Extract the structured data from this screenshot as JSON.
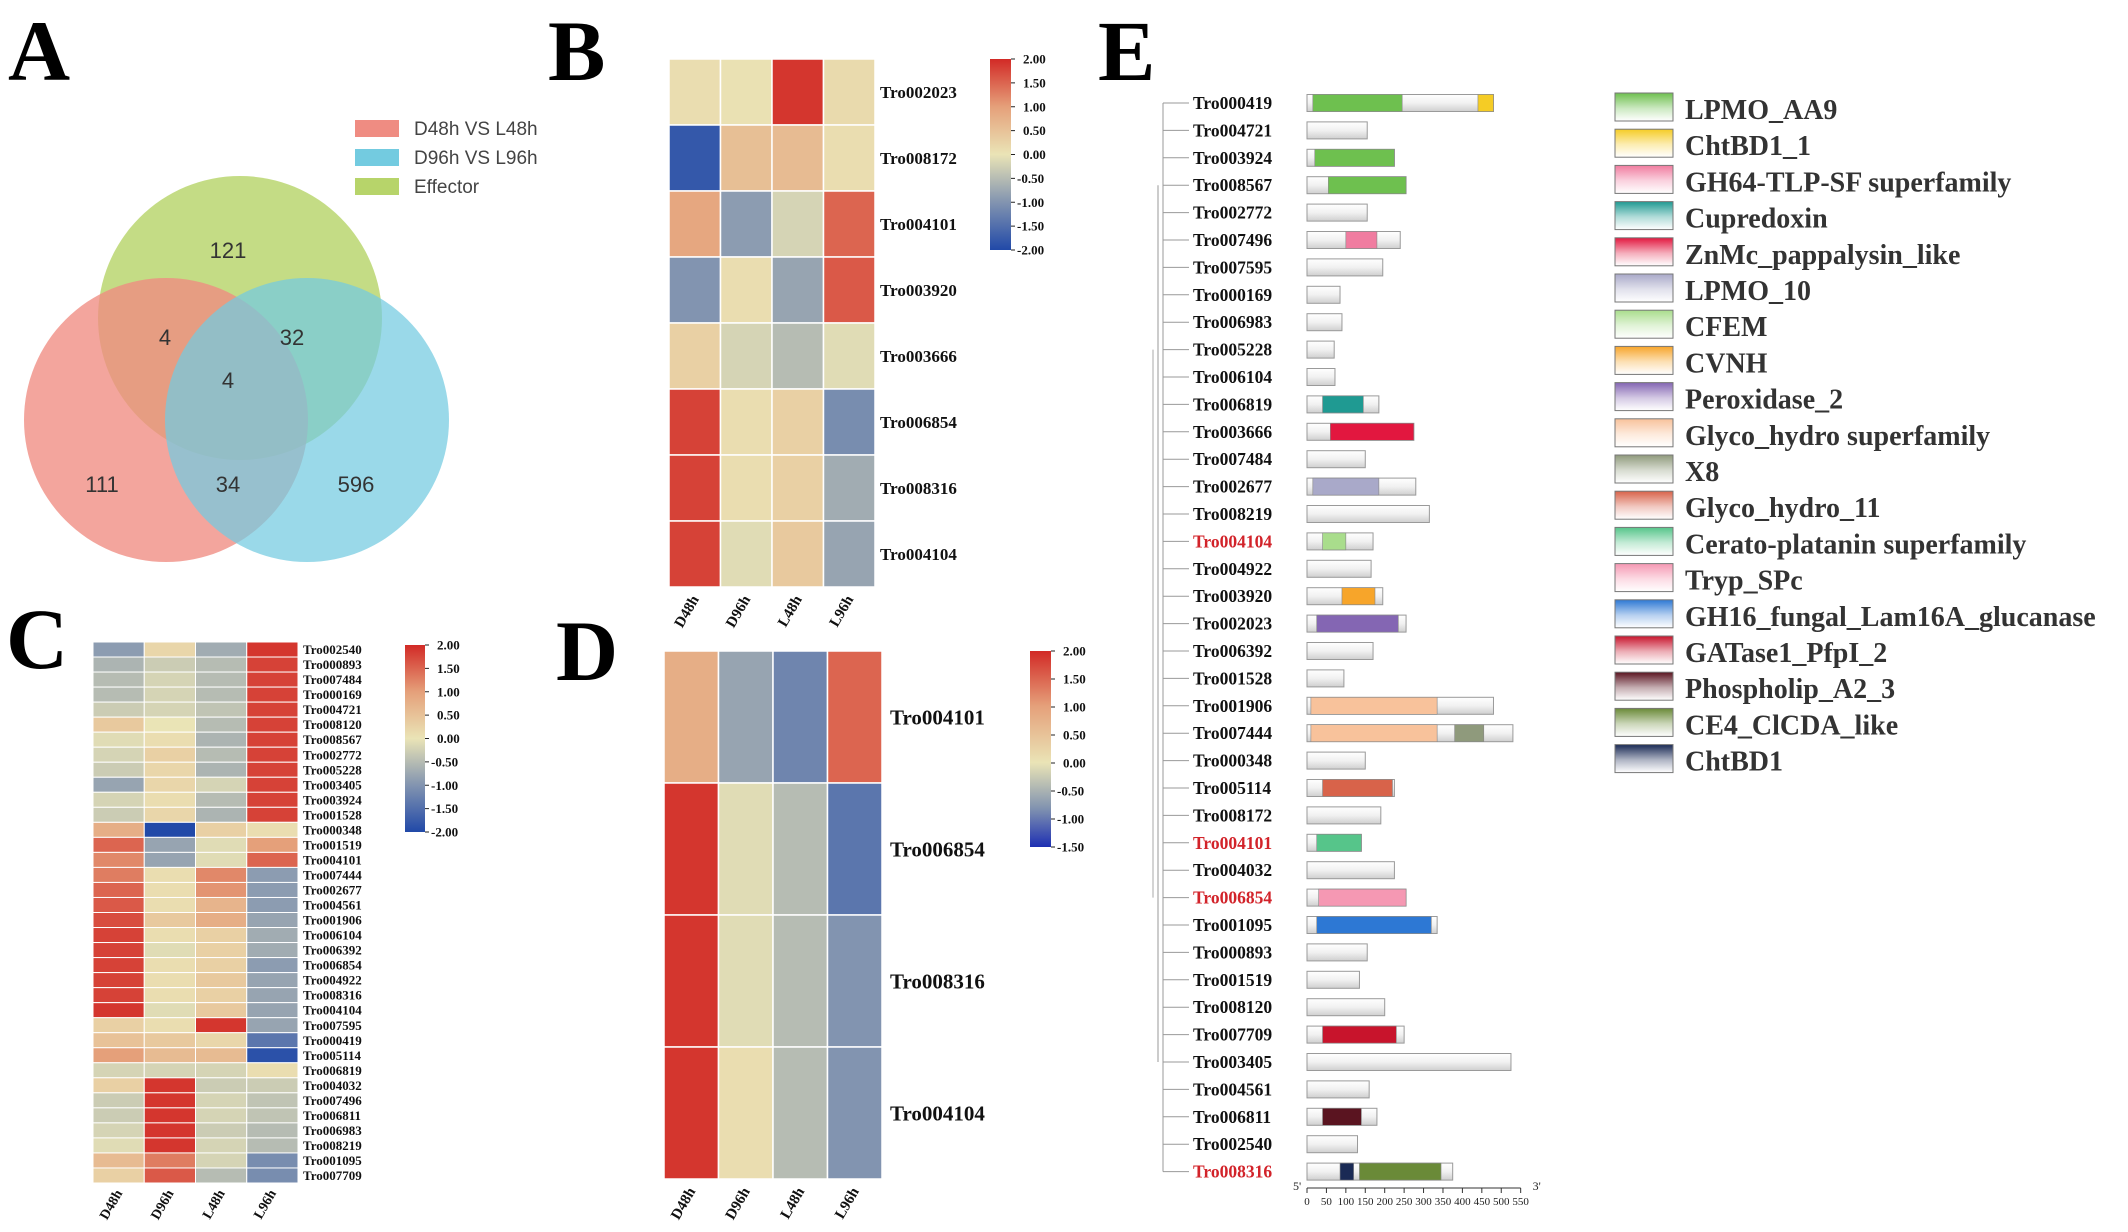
{
  "figure": {
    "panel_labels": [
      "A",
      "B",
      "C",
      "D",
      "E"
    ],
    "colors": {
      "d48": "#ef8c82",
      "d96": "#73cbe0",
      "effector": "#b7d46a",
      "heat_low": "#2149a8",
      "heat_mid": "#eae4b6",
      "heat_high": "#d22a26"
    }
  },
  "venn": {
    "legend": [
      "D48h VS L48h",
      "D96h VS L96h",
      "Effector"
    ],
    "counts": {
      "effector_only": "121",
      "d48_effector": "4",
      "d96_effector": "32",
      "all_three": "4",
      "d48_only": "111",
      "d48_d96": "34",
      "d96_only": "596"
    }
  },
  "heatmap_b": {
    "columns": [
      "D48h",
      "D96h",
      "L48h",
      "L96h"
    ],
    "rows": [
      "Tro002023",
      "Tro008172",
      "Tro004101",
      "Tro003920",
      "Tro003666",
      "Tro006854",
      "Tro008316",
      "Tro004104"
    ],
    "values": [
      [
        0.1,
        0.05,
        1.9,
        0.15
      ],
      [
        -1.8,
        0.55,
        0.6,
        0.1
      ],
      [
        0.9,
        -0.9,
        -0.2,
        1.5
      ],
      [
        -1.0,
        0.1,
        -0.8,
        1.6
      ],
      [
        0.3,
        -0.2,
        -0.5,
        -0.1
      ],
      [
        1.8,
        0.1,
        0.3,
        -1.1
      ],
      [
        1.8,
        0.1,
        0.3,
        -0.7
      ],
      [
        1.8,
        -0.1,
        0.4,
        -0.8
      ]
    ],
    "scale_ticks": [
      "2.00",
      "1.50",
      "1.00",
      "0.50",
      "0.00",
      "-0.50",
      "-1.00",
      "-1.50",
      "-2.00"
    ]
  },
  "heatmap_c": {
    "columns": [
      "D48h",
      "D96h",
      "L48h",
      "L96h"
    ],
    "rows": [
      "Tro002540",
      "Tro000893",
      "Tro007484",
      "Tro000169",
      "Tro004721",
      "Tro008120",
      "Tro008567",
      "Tro002772",
      "Tro005228",
      "Tro003405",
      "Tro003924",
      "Tro001528",
      "Tro000348",
      "Tro001519",
      "Tro004101",
      "Tro007444",
      "Tro002677",
      "Tro004561",
      "Tro001906",
      "Tro006104",
      "Tro006392",
      "Tro006854",
      "Tro004922",
      "Tro008316",
      "Tro004104",
      "Tro007595",
      "Tro000419",
      "Tro005114",
      "Tro006819",
      "Tro004032",
      "Tro007496",
      "Tro006811",
      "Tro006983",
      "Tro008219",
      "Tro001095",
      "Tro007709"
    ],
    "values": [
      [
        -0.9,
        0.2,
        -0.7,
        1.9
      ],
      [
        -0.6,
        -0.3,
        -0.5,
        1.8
      ],
      [
        -0.5,
        -0.2,
        -0.5,
        1.8
      ],
      [
        -0.5,
        -0.2,
        -0.5,
        1.8
      ],
      [
        -0.3,
        -0.2,
        -0.4,
        1.8
      ],
      [
        0.4,
        0.0,
        -0.5,
        1.8
      ],
      [
        -0.1,
        0.1,
        -0.6,
        1.8
      ],
      [
        -0.2,
        0.3,
        -0.5,
        1.8
      ],
      [
        -0.3,
        0.2,
        -0.6,
        1.8
      ],
      [
        -0.8,
        0.2,
        -0.2,
        1.8
      ],
      [
        -0.2,
        0.1,
        -0.5,
        1.8
      ],
      [
        -0.3,
        0.2,
        -0.6,
        1.8
      ],
      [
        0.8,
        -2.0,
        0.3,
        0.1
      ],
      [
        1.5,
        -0.8,
        -0.1,
        1.0
      ],
      [
        1.2,
        -0.8,
        -0.1,
        1.5
      ],
      [
        1.3,
        0.1,
        1.2,
        -0.9
      ],
      [
        1.5,
        0.1,
        1.1,
        -0.9
      ],
      [
        1.6,
        0.1,
        0.7,
        -0.9
      ],
      [
        1.7,
        0.4,
        0.8,
        -0.8
      ],
      [
        1.8,
        0.1,
        0.3,
        -0.7
      ],
      [
        1.8,
        -0.1,
        0.3,
        -0.7
      ],
      [
        1.8,
        0.1,
        0.3,
        -0.9
      ],
      [
        1.8,
        0.1,
        0.4,
        -0.8
      ],
      [
        1.8,
        0.1,
        0.3,
        -0.8
      ],
      [
        1.9,
        -0.1,
        0.4,
        -0.8
      ],
      [
        0.3,
        0.1,
        1.9,
        -0.8
      ],
      [
        0.5,
        0.4,
        0.2,
        -1.4
      ],
      [
        1.0,
        0.6,
        0.6,
        -1.9
      ],
      [
        -0.2,
        -0.2,
        -0.2,
        0.1
      ],
      [
        0.3,
        1.9,
        -0.3,
        -0.3
      ],
      [
        -0.3,
        1.9,
        -0.2,
        -0.4
      ],
      [
        -0.3,
        1.9,
        -0.2,
        -0.4
      ],
      [
        -0.2,
        1.9,
        -0.3,
        -0.5
      ],
      [
        -0.1,
        1.9,
        -0.2,
        -0.5
      ],
      [
        0.6,
        1.3,
        -0.2,
        -1.1
      ],
      [
        0.3,
        1.6,
        -0.5,
        -1.1
      ]
    ],
    "scale_ticks": [
      "2.00",
      "1.50",
      "1.00",
      "0.50",
      "0.00",
      "-0.50",
      "-1.00",
      "-1.50",
      "-2.00"
    ]
  },
  "heatmap_d": {
    "columns": [
      "D48h",
      "D96h",
      "L48h",
      "L96h"
    ],
    "rows": [
      "Tro004101",
      "Tro006854",
      "Tro008316",
      "Tro004104"
    ],
    "values": [
      [
        0.8,
        -0.8,
        -1.2,
        1.5
      ],
      [
        1.9,
        -0.1,
        -0.5,
        -1.4
      ],
      [
        1.9,
        -0.1,
        -0.5,
        -1.0
      ],
      [
        1.9,
        0.1,
        -0.5,
        -1.0
      ]
    ],
    "scale_ticks": [
      "2.00",
      "1.50",
      "1.00",
      "0.50",
      "0.00",
      "-0.50",
      "-1.00",
      "-1.50"
    ]
  },
  "domains": {
    "axis_ticks": [
      "0",
      "50",
      "100",
      "150",
      "200",
      "250",
      "300",
      "350",
      "400",
      "450",
      "500",
      "550"
    ],
    "axis_five": "5'",
    "axis_three": "3'",
    "legend": [
      {
        "name": "LPMO_AA9",
        "color": "#6ec04f"
      },
      {
        "name": "ChtBD1_1",
        "color": "#f5cc25"
      },
      {
        "name": "GH64-TLP-SF superfamily",
        "color": "#f07ca0"
      },
      {
        "name": "Cupredoxin",
        "color": "#1f9a92"
      },
      {
        "name": "ZnMc_pappalysin_like",
        "color": "#e2173f"
      },
      {
        "name": "LPMO_10",
        "color": "#a9a9c9"
      },
      {
        "name": "CFEM",
        "color": "#a9dd8c"
      },
      {
        "name": "CVNH",
        "color": "#f7a52a"
      },
      {
        "name": "Peroxidase_2",
        "color": "#8466b3"
      },
      {
        "name": "Glyco_hydro superfamily",
        "color": "#f8c29b"
      },
      {
        "name": "X8",
        "color": "#8f9a7c"
      },
      {
        "name": "Glyco_hydro_11",
        "color": "#d8634a"
      },
      {
        "name": "Cerato-platanin superfamily",
        "color": "#56c58a"
      },
      {
        "name": "Tryp_SPc",
        "color": "#f598b3"
      },
      {
        "name": "GH16_fungal_Lam16A_glucanase",
        "color": "#2d78d4"
      },
      {
        "name": "GATase1_PfpI_2",
        "color": "#c8142c"
      },
      {
        "name": "Phospholip_A2_3",
        "color": "#5a1420"
      },
      {
        "name": "CE4_ClCDA_like",
        "color": "#6a8a38"
      },
      {
        "name": "ChtBD1",
        "color": "#1a2a55"
      }
    ],
    "genes": [
      {
        "id": "Tro000419",
        "length": 480,
        "highlight": false,
        "domains": [
          {
            "start": 15,
            "end": 245,
            "color": "#6ec04f"
          },
          {
            "start": 440,
            "end": 480,
            "color": "#f5cc25"
          }
        ]
      },
      {
        "id": "Tro004721",
        "length": 155,
        "highlight": false,
        "domains": []
      },
      {
        "id": "Tro003924",
        "length": 225,
        "highlight": false,
        "domains": [
          {
            "start": 20,
            "end": 225,
            "color": "#6ec04f"
          }
        ]
      },
      {
        "id": "Tro008567",
        "length": 255,
        "highlight": false,
        "domains": [
          {
            "start": 55,
            "end": 255,
            "color": "#6ec04f"
          }
        ]
      },
      {
        "id": "Tro002772",
        "length": 155,
        "highlight": false,
        "domains": []
      },
      {
        "id": "Tro007496",
        "length": 240,
        "highlight": false,
        "domains": [
          {
            "start": 100,
            "end": 180,
            "color": "#f07ca0"
          }
        ]
      },
      {
        "id": "Tro007595",
        "length": 195,
        "highlight": false,
        "domains": []
      },
      {
        "id": "Tro000169",
        "length": 85,
        "highlight": false,
        "domains": []
      },
      {
        "id": "Tro006983",
        "length": 90,
        "highlight": false,
        "domains": []
      },
      {
        "id": "Tro005228",
        "length": 70,
        "highlight": false,
        "domains": []
      },
      {
        "id": "Tro006104",
        "length": 72,
        "highlight": false,
        "domains": []
      },
      {
        "id": "Tro006819",
        "length": 185,
        "highlight": false,
        "domains": [
          {
            "start": 40,
            "end": 145,
            "color": "#1f9a92"
          }
        ]
      },
      {
        "id": "Tro003666",
        "length": 275,
        "highlight": false,
        "domains": [
          {
            "start": 60,
            "end": 275,
            "color": "#e2173f"
          }
        ]
      },
      {
        "id": "Tro007484",
        "length": 150,
        "highlight": false,
        "domains": []
      },
      {
        "id": "Tro002677",
        "length": 280,
        "highlight": false,
        "domains": [
          {
            "start": 15,
            "end": 185,
            "color": "#a9a9c9"
          }
        ]
      },
      {
        "id": "Tro008219",
        "length": 315,
        "highlight": false,
        "domains": []
      },
      {
        "id": "Tro004104",
        "length": 170,
        "highlight": true,
        "domains": [
          {
            "start": 40,
            "end": 100,
            "color": "#a9dd8c"
          }
        ]
      },
      {
        "id": "Tro004922",
        "length": 165,
        "highlight": false,
        "domains": []
      },
      {
        "id": "Tro003920",
        "length": 195,
        "highlight": false,
        "domains": [
          {
            "start": 90,
            "end": 175,
            "color": "#f7a52a"
          }
        ]
      },
      {
        "id": "Tro002023",
        "length": 255,
        "highlight": false,
        "domains": [
          {
            "start": 25,
            "end": 235,
            "color": "#8466b3"
          }
        ]
      },
      {
        "id": "Tro006392",
        "length": 170,
        "highlight": false,
        "domains": []
      },
      {
        "id": "Tro001528",
        "length": 95,
        "highlight": false,
        "domains": []
      },
      {
        "id": "Tro001906",
        "length": 480,
        "highlight": false,
        "domains": [
          {
            "start": 10,
            "end": 335,
            "color": "#f8c29b"
          }
        ]
      },
      {
        "id": "Tro007444",
        "length": 530,
        "highlight": false,
        "domains": [
          {
            "start": 10,
            "end": 335,
            "color": "#f8c29b"
          },
          {
            "start": 380,
            "end": 455,
            "color": "#8f9a7c"
          }
        ]
      },
      {
        "id": "Tro000348",
        "length": 150,
        "highlight": false,
        "domains": []
      },
      {
        "id": "Tro005114",
        "length": 225,
        "highlight": false,
        "domains": [
          {
            "start": 40,
            "end": 220,
            "color": "#d8634a"
          }
        ]
      },
      {
        "id": "Tro008172",
        "length": 190,
        "highlight": false,
        "domains": []
      },
      {
        "id": "Tro004101",
        "length": 140,
        "highlight": true,
        "domains": [
          {
            "start": 25,
            "end": 140,
            "color": "#56c58a"
          }
        ]
      },
      {
        "id": "Tro004032",
        "length": 225,
        "highlight": false,
        "domains": []
      },
      {
        "id": "Tro006854",
        "length": 255,
        "highlight": true,
        "domains": [
          {
            "start": 30,
            "end": 255,
            "color": "#f598b3"
          }
        ]
      },
      {
        "id": "Tro001095",
        "length": 335,
        "highlight": false,
        "domains": [
          {
            "start": 25,
            "end": 320,
            "color": "#2d78d4"
          }
        ]
      },
      {
        "id": "Tro000893",
        "length": 155,
        "highlight": false,
        "domains": []
      },
      {
        "id": "Tro001519",
        "length": 135,
        "highlight": false,
        "domains": []
      },
      {
        "id": "Tro008120",
        "length": 200,
        "highlight": false,
        "domains": []
      },
      {
        "id": "Tro007709",
        "length": 250,
        "highlight": false,
        "domains": [
          {
            "start": 40,
            "end": 230,
            "color": "#c8142c"
          }
        ]
      },
      {
        "id": "Tro003405",
        "length": 525,
        "highlight": false,
        "domains": []
      },
      {
        "id": "Tro004561",
        "length": 160,
        "highlight": false,
        "domains": []
      },
      {
        "id": "Tro006811",
        "length": 180,
        "highlight": false,
        "domains": [
          {
            "start": 40,
            "end": 140,
            "color": "#5a1420"
          }
        ]
      },
      {
        "id": "Tro002540",
        "length": 130,
        "highlight": false,
        "domains": []
      },
      {
        "id": "Tro008316",
        "length": 375,
        "highlight": true,
        "domains": [
          {
            "start": 85,
            "end": 120,
            "color": "#1a2a55"
          },
          {
            "start": 135,
            "end": 345,
            "color": "#6a8a38"
          }
        ]
      }
    ]
  }
}
